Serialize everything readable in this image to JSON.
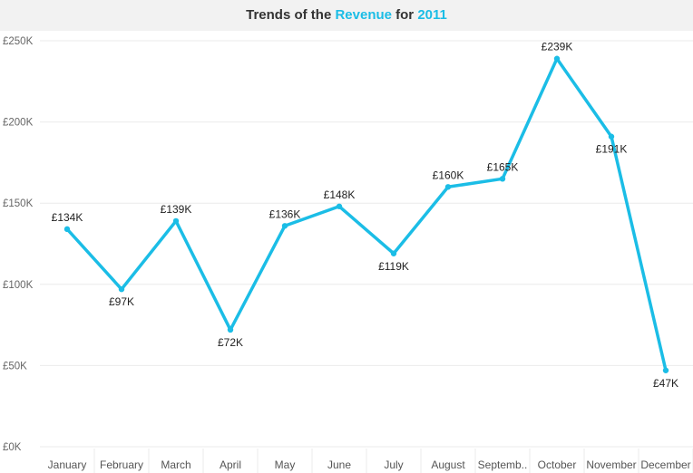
{
  "title": {
    "part1": "Trends of the ",
    "highlight1": "Revenue",
    "part2": " for ",
    "highlight2": "2011"
  },
  "colors": {
    "line": "#1bbde6",
    "grid": "#ebebeb",
    "title_bg": "#f2f2f2"
  },
  "chart_data": {
    "type": "line",
    "title": "Trends of the Revenue for 2011",
    "categories": [
      "January",
      "February",
      "March",
      "April",
      "May",
      "June",
      "July",
      "August",
      "Septemb..",
      "October",
      "November",
      "December"
    ],
    "series": [
      {
        "values": [
          134,
          97,
          139,
          72,
          136,
          148,
          119,
          160,
          165,
          239,
          191,
          47
        ],
        "labels": [
          "£134K",
          "£97K",
          "£139K",
          "£72K",
          "£136K",
          "£148K",
          "£119K",
          "£160K",
          "£165K",
          "£239K",
          "£191K",
          "£47K"
        ]
      }
    ],
    "yticks": [
      0,
      50,
      100,
      150,
      200,
      250
    ],
    "ytick_labels": [
      "£0K",
      "£50K",
      "£100K",
      "£150K",
      "£200K",
      "£250K"
    ],
    "ylim": [
      0,
      250
    ],
    "xlabel": "",
    "ylabel": "",
    "grid": true
  }
}
